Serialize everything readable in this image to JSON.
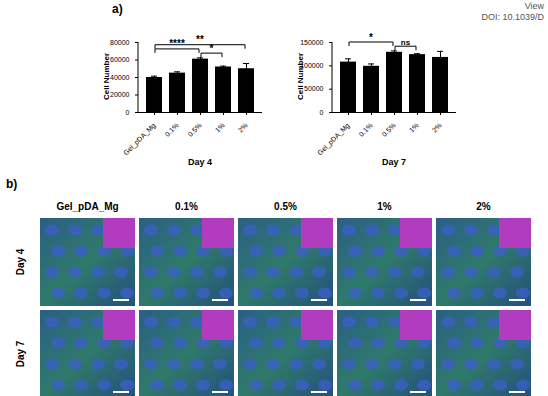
{
  "header": {
    "lines": [
      "View",
      "DOI: 10.1039/D"
    ]
  },
  "panel_labels": [
    "a)",
    "b)"
  ],
  "chart_data": [
    {
      "type": "bar",
      "xlabel": "Day 4",
      "ylabel": "Cell Number",
      "categories": [
        "Gel_pDA_Mg",
        "0.1%",
        "0.5%",
        "1%",
        "2%"
      ],
      "values": [
        40000,
        45000,
        61000,
        52000,
        50000
      ],
      "errors": [
        1500,
        1500,
        1500,
        1000,
        6000
      ],
      "color": "#000000",
      "ylim": [
        0,
        80000
      ],
      "yticks": [
        0,
        20000,
        40000,
        60000,
        80000
      ],
      "significance": [
        {
          "from": "Gel_pDA_Mg",
          "to": "0.5%",
          "label": "****"
        },
        {
          "from": "0.5%",
          "to": "1%",
          "label": "*"
        },
        {
          "from": "Gel_pDA_Mg",
          "to": "2%",
          "label": "**"
        }
      ]
    },
    {
      "type": "bar",
      "xlabel": "Day 7",
      "ylabel": "Cell Number",
      "categories": [
        "Gel_pDA_Mg",
        "0.1%",
        "0.5%",
        "1%",
        "2%"
      ],
      "values": [
        108000,
        99000,
        129000,
        124000,
        118000
      ],
      "errors": [
        7000,
        5000,
        3000,
        2000,
        13000
      ],
      "color": "#000000",
      "ylim": [
        0,
        150000
      ],
      "yticks": [
        0,
        50000,
        100000,
        150000
      ],
      "significance": [
        {
          "from": "Gel_pDA_Mg",
          "to": "0.5%",
          "label": "*"
        },
        {
          "from": "0.5%",
          "to": "1%",
          "label": "ns"
        }
      ]
    }
  ],
  "image_panel": {
    "columns": [
      "Gel_pDA_Mg",
      "0.1%",
      "0.5%",
      "1%",
      "2%"
    ],
    "rows": [
      "Day 4",
      "Day 7"
    ]
  }
}
